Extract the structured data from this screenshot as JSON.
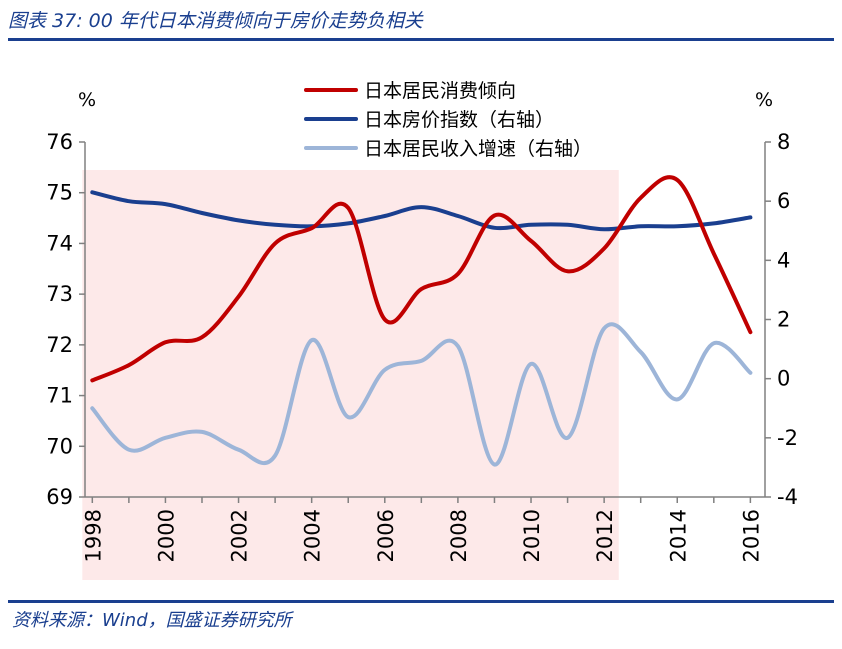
{
  "header": {
    "title": "图表 37:  00 年代日本消费倾向于房价走势负相关"
  },
  "footer": {
    "source": "资料来源：Wind，国盛证券研究所"
  },
  "colors": {
    "accent": "#1a3f8f",
    "shade": "#fde9e9",
    "axis": "#808080"
  },
  "chart_data": {
    "type": "line",
    "left_unit": "%",
    "right_unit": "%",
    "shaded_range": [
      1998,
      2012.4
    ],
    "x_ticks": [
      1998,
      2000,
      2002,
      2004,
      2006,
      2008,
      2010,
      2012,
      2014,
      2016
    ],
    "x_tick_labels": [
      "1998",
      "2000",
      "2002",
      "2004",
      "2006",
      "2008",
      "2010",
      "2012",
      "2014",
      "2016"
    ],
    "left_axis": {
      "min": 69,
      "max": 76,
      "ticks": [
        69,
        70,
        71,
        72,
        73,
        74,
        75,
        76
      ],
      "tick_labels": [
        "69",
        "70",
        "71",
        "72",
        "73",
        "74",
        "75",
        "76"
      ]
    },
    "right_axis": {
      "min": -4,
      "max": 8,
      "ticks": [
        -4,
        -2,
        0,
        2,
        4,
        6,
        8
      ],
      "tick_labels": [
        "-4",
        "-2",
        "0",
        "2",
        "4",
        "6",
        "8"
      ]
    },
    "series": [
      {
        "name": "日本居民消费倾向",
        "axis": "left",
        "color": "#c00000",
        "x": [
          1998,
          1999,
          2000,
          2001,
          2002,
          2003,
          2004,
          2005,
          2006,
          2007,
          2008,
          2009,
          2010,
          2011,
          2012,
          2013,
          2014,
          2015,
          2016
        ],
        "y": [
          71.3,
          71.6,
          72.05,
          72.15,
          72.95,
          74.0,
          74.3,
          74.7,
          72.5,
          73.1,
          73.4,
          74.55,
          74.05,
          73.45,
          73.9,
          74.9,
          75.25,
          73.8,
          72.25
        ]
      },
      {
        "name": "日本房价指数（右轴）",
        "axis": "right",
        "color": "#1a3f8f",
        "x": [
          1998,
          1999,
          2000,
          2001,
          2002,
          2003,
          2004,
          2005,
          2006,
          2007,
          2008,
          2009,
          2010,
          2011,
          2012,
          2013,
          2014,
          2015,
          2016
        ],
        "y": [
          6.3,
          6.0,
          5.9,
          5.6,
          5.35,
          5.2,
          5.15,
          5.25,
          5.5,
          5.8,
          5.5,
          5.1,
          5.2,
          5.2,
          5.05,
          5.15,
          5.15,
          5.25,
          5.45
        ]
      },
      {
        "name": "日本居民收入增速（右轴）",
        "axis": "right",
        "color": "#9db5d8",
        "x": [
          1998,
          1999,
          2000,
          2001,
          2002,
          2003,
          2004,
          2005,
          2006,
          2007,
          2008,
          2009,
          2010,
          2011,
          2012,
          2013,
          2014,
          2015,
          2016
        ],
        "y": [
          -1.0,
          -2.4,
          -2.0,
          -1.8,
          -2.4,
          -2.6,
          1.3,
          -1.3,
          0.3,
          0.6,
          1.1,
          -2.9,
          0.5,
          -2.0,
          1.7,
          0.9,
          -0.7,
          1.2,
          0.2
        ]
      }
    ]
  }
}
